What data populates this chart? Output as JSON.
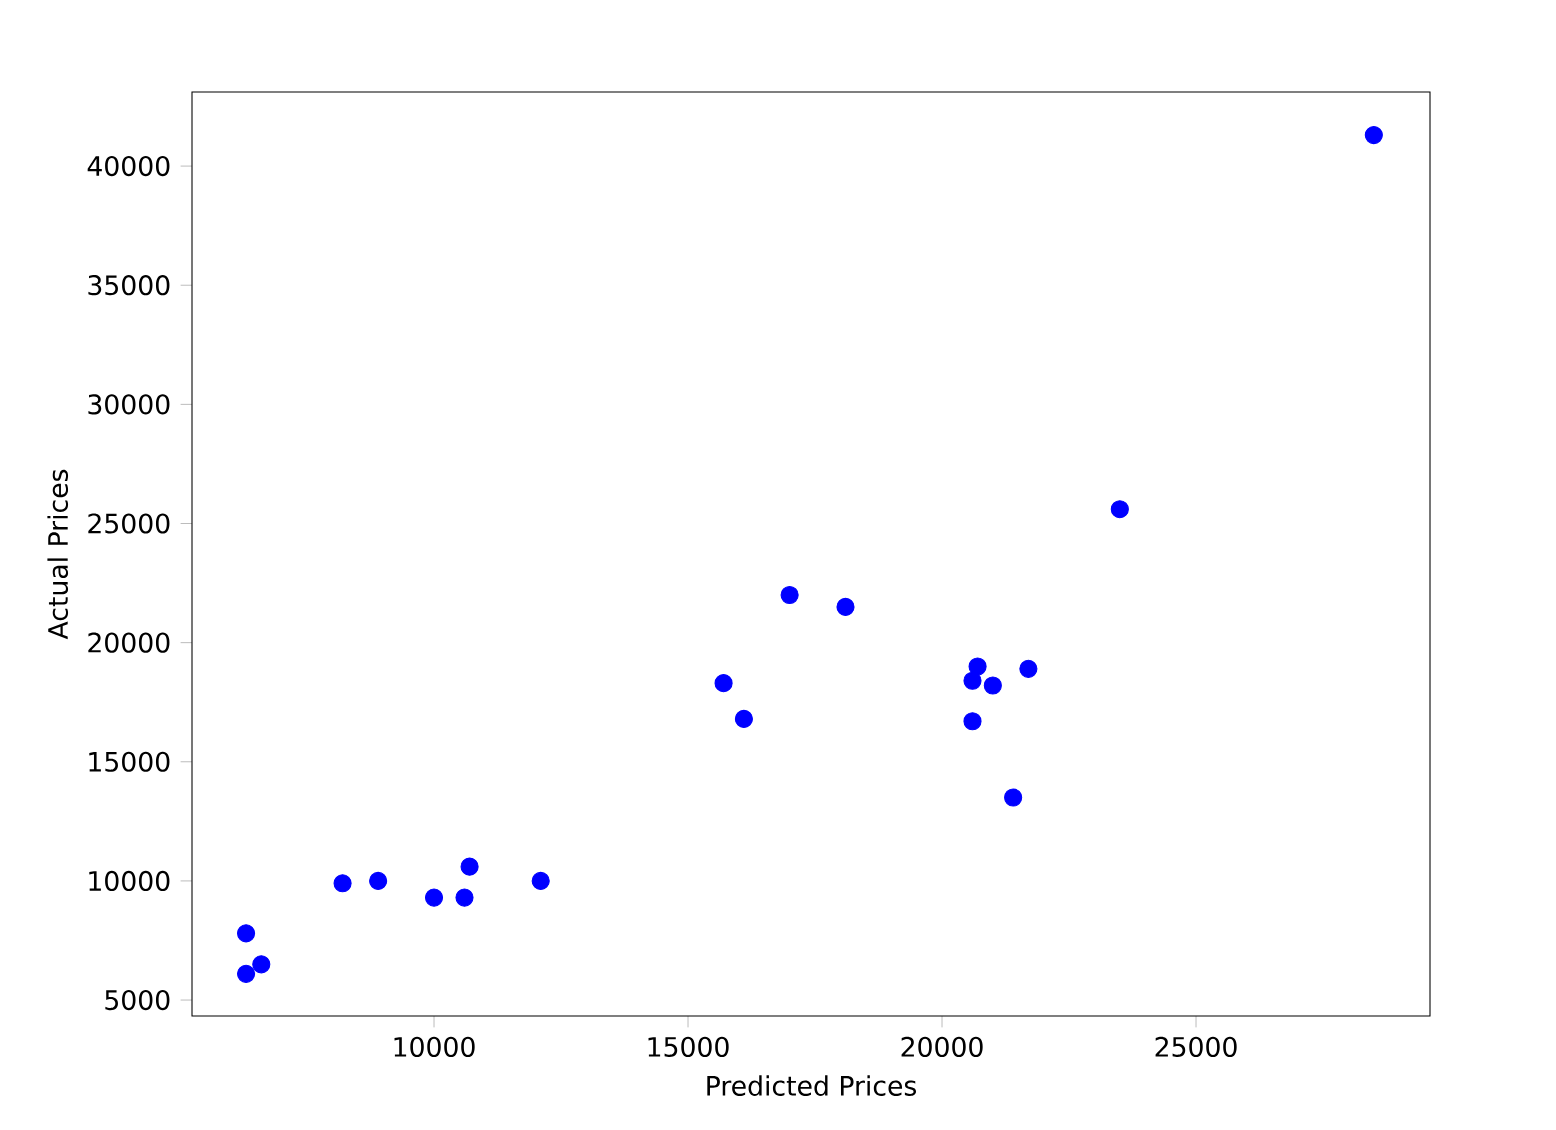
{
  "chart_data": {
    "type": "scatter",
    "xlabel": "Predicted Prices",
    "ylabel": "Actual Prices",
    "x": [
      6300,
      6300,
      6600,
      8200,
      8900,
      10000,
      10600,
      10700,
      12100,
      15700,
      16100,
      17000,
      18100,
      20600,
      20600,
      20700,
      21000,
      21400,
      21700,
      23500,
      28500
    ],
    "values": [
      7800,
      6100,
      6500,
      9900,
      10000,
      9300,
      9300,
      10600,
      10000,
      18300,
      16800,
      22000,
      21500,
      18400,
      16700,
      19000,
      18200,
      13500,
      18900,
      25600,
      41300
    ],
    "color": "#0000ff",
    "marker": "circle",
    "xlim": [
      5236,
      29606
    ],
    "ylim": [
      4331,
      43109
    ],
    "xticks": [
      10000,
      15000,
      20000,
      25000
    ],
    "yticks": [
      5000,
      10000,
      15000,
      20000,
      25000,
      30000,
      35000,
      40000
    ]
  }
}
